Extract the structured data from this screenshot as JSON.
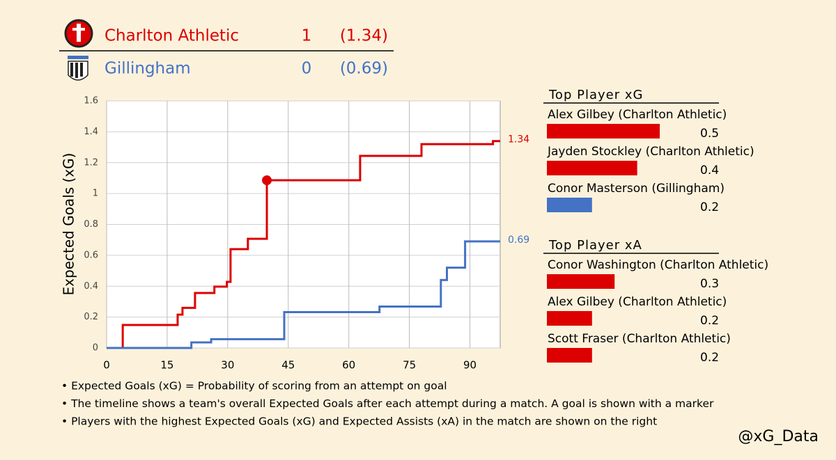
{
  "scoreboard": [
    {
      "team": "Charlton Athletic",
      "score": "1",
      "xg": "(1.34)",
      "color": "#dd0000"
    },
    {
      "team": "Gillingham",
      "score": "0",
      "xg": "(0.69)",
      "color": "#4472c4"
    }
  ],
  "chart_data": [
    {
      "type": "step",
      "ylabel": "Expected Goals (xG)",
      "xlim": [
        0,
        97.5
      ],
      "xticks": [
        0,
        15,
        30,
        45,
        60,
        75,
        90
      ],
      "ylim": [
        0,
        1.6
      ],
      "yticks": [
        0,
        0.2,
        0.4,
        0.6,
        0.8,
        1,
        1.2,
        1.4,
        1.6
      ],
      "grid": true,
      "series": [
        {
          "color": "#dd0000",
          "x": [
            0,
            4,
            17.6,
            18.8,
            21.9,
            26.7,
            29.8,
            30.7,
            35,
            39.7,
            62.8,
            78,
            95.7
          ],
          "values": [
            0,
            0.149,
            0.216,
            0.26,
            0.356,
            0.397,
            0.428,
            0.64,
            0.707,
            1.086,
            1.244,
            1.32,
            1.34
          ],
          "goals_x": [
            39.7
          ],
          "goals_values": [
            1.086
          ]
        },
        {
          "color": "#4472c4",
          "x": [
            0,
            21,
            25.9,
            44,
            67.6,
            82.8,
            84.3,
            88.8
          ],
          "values": [
            0,
            0.036,
            0.057,
            0.232,
            0.268,
            0.44,
            0.52,
            0.69
          ],
          "goals_x": [],
          "goals_values": []
        }
      ]
    },
    {
      "type": "hbar",
      "title": "Top Player xG",
      "categories": [
        "Alex Gilbey (Charlton Athletic)",
        "Jayden Stockley (Charlton Athletic)",
        "Conor Masterson (Gillingham)"
      ],
      "values": [
        0.5,
        0.4,
        0.2
      ],
      "colors": [
        "#dd0000",
        "#dd0000",
        "#4472c4"
      ]
    },
    {
      "type": "hbar",
      "title": "Top Player xA",
      "categories": [
        "Conor Washington (Charlton Athletic)",
        "Alex Gilbey (Charlton Athletic)",
        "Scott Fraser (Charlton Athletic)"
      ],
      "values": [
        0.3,
        0.2,
        0.2
      ],
      "colors": [
        "#dd0000",
        "#dd0000",
        "#dd0000"
      ]
    }
  ],
  "notes": [
    "• Expected Goals (xG) = Probability of scoring from an attempt on goal",
    "• The timeline shows a team's overall Expected Goals after each attempt during a match. A goal is shown with a marker",
    "• Players with the highest Expected Goals (xG) and Expected Assists (xA) in the match are shown on the right"
  ],
  "credit": "@xG_Data"
}
